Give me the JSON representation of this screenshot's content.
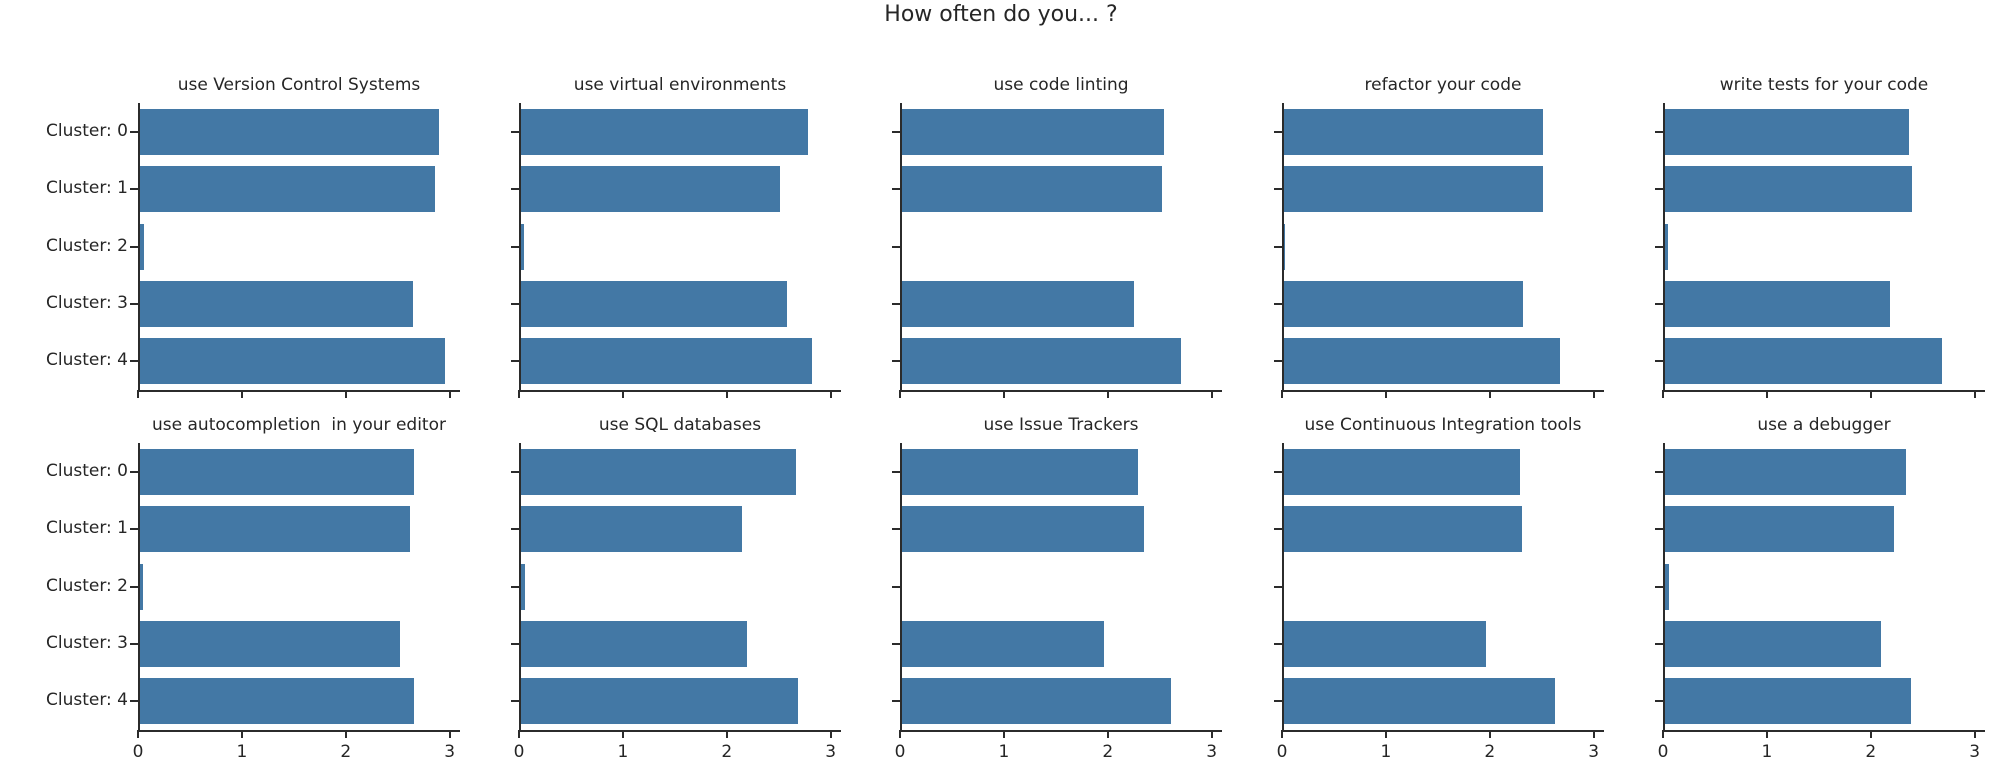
{
  "chart_data": {
    "type": "bar",
    "orientation": "horizontal",
    "suptitle": "How often do you... ?",
    "categories": [
      "Cluster: 0",
      "Cluster: 1",
      "Cluster: 2",
      "Cluster: 3",
      "Cluster: 4"
    ],
    "xlim": [
      0,
      3.1
    ],
    "xticks": [
      0,
      1,
      2,
      3
    ],
    "xtick_labels": [
      "0",
      "1",
      "2",
      "3"
    ],
    "grid": false,
    "legend": null,
    "bar_color": "#4378a5",
    "spine_color": "#2b2b2b",
    "text_color": "#262626",
    "layout": {
      "rows": 2,
      "cols": 5,
      "ytick_labels_first_col_only": true,
      "xtick_labels_last_row_only": true
    },
    "subplots": [
      {
        "title": "use Version Control Systems",
        "values": [
          2.88,
          2.84,
          0.04,
          2.63,
          2.94
        ]
      },
      {
        "title": "use virtual environments",
        "values": [
          2.76,
          2.49,
          0.03,
          2.56,
          2.8
        ]
      },
      {
        "title": "use code linting",
        "values": [
          2.52,
          2.5,
          0.0,
          2.23,
          2.69
        ]
      },
      {
        "title": "refactor your code",
        "values": [
          2.49,
          2.49,
          0.01,
          2.3,
          2.66
        ]
      },
      {
        "title": "write tests for your code",
        "values": [
          2.35,
          2.38,
          0.03,
          2.17,
          2.67
        ]
      },
      {
        "title": "use autocompletion  in your editor",
        "values": [
          2.64,
          2.6,
          0.03,
          2.5,
          2.64
        ]
      },
      {
        "title": "use SQL databases",
        "values": [
          2.65,
          2.13,
          0.04,
          2.18,
          2.67
        ]
      },
      {
        "title": "use Issue Trackers",
        "values": [
          2.27,
          2.33,
          0.0,
          1.94,
          2.59
        ]
      },
      {
        "title": "use Continuous Integration tools",
        "values": [
          2.27,
          2.29,
          0.0,
          1.94,
          2.61
        ]
      },
      {
        "title": "use a debugger",
        "values": [
          2.32,
          2.2,
          0.04,
          2.08,
          2.37
        ]
      }
    ]
  }
}
